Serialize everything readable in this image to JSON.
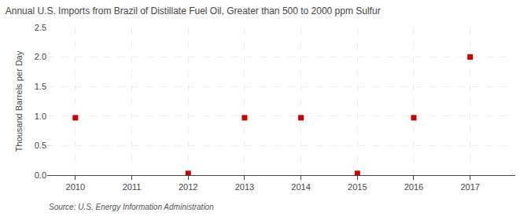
{
  "chart_data": {
    "type": "scatter",
    "title": "Annual U.S. Imports from Brazil of Distillate Fuel Oil, Greater than 500 to 2000 ppm Sulfur",
    "ylabel": "Thousand Barrels per Day",
    "annotations": [
      "Source: U.S. Energy Information Administration"
    ],
    "x": [
      2010,
      2012,
      2013,
      2014,
      2015,
      2016,
      2017
    ],
    "values": [
      0.972,
      0.028,
      0.972,
      0.972,
      0.028,
      0.972,
      2.0
    ],
    "color": "#cc0000",
    "marker": "square",
    "xlim": [
      2009.5,
      2017.8
    ],
    "xticks": [
      2010,
      2011,
      2012,
      2013,
      2014,
      2015,
      2016,
      2017
    ],
    "ylim": [
      0.0,
      2.5
    ],
    "yticks": [
      {
        "value": 0.0,
        "label": "0.0"
      },
      0.5,
      {
        "value": 1.0,
        "label": "1.0"
      },
      1.5,
      {
        "value": 2.0,
        "label": "2.0"
      },
      2.5
    ],
    "grid": true
  }
}
